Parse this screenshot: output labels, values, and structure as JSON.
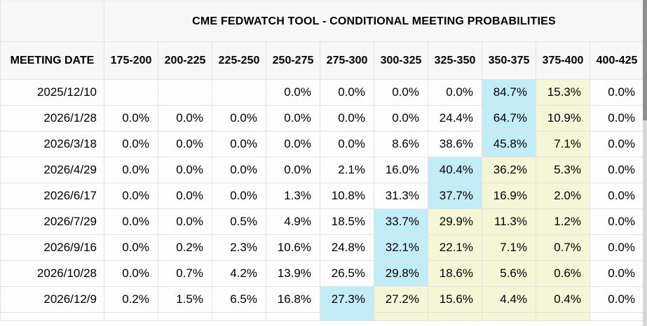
{
  "table": {
    "title": "CME FEDWATCH TOOL - CONDITIONAL MEETING PROBABILITIES",
    "columns": [
      "MEETING DATE",
      "175-200",
      "200-225",
      "225-250",
      "250-275",
      "275-300",
      "300-325",
      "325-350",
      "350-375",
      "375-400",
      "400-425"
    ],
    "rows": [
      {
        "date": "2025/12/10",
        "values": [
          "",
          "",
          "",
          "0.0%",
          "0.0%",
          "0.0%",
          "0.0%",
          "84.7%",
          "15.3%",
          "0.0%"
        ],
        "highlight": [
          null,
          null,
          null,
          null,
          null,
          null,
          null,
          "cyan",
          "yellow",
          null
        ],
        "partial": false
      },
      {
        "date": "2026/1/28",
        "values": [
          "0.0%",
          "0.0%",
          "0.0%",
          "0.0%",
          "0.0%",
          "0.0%",
          "24.4%",
          "64.7%",
          "10.9%",
          "0.0%"
        ],
        "highlight": [
          null,
          null,
          null,
          null,
          null,
          null,
          null,
          "cyan",
          "yellow",
          null
        ],
        "partial": false
      },
      {
        "date": "2026/3/18",
        "values": [
          "0.0%",
          "0.0%",
          "0.0%",
          "0.0%",
          "0.0%",
          "8.6%",
          "38.6%",
          "45.8%",
          "7.1%",
          "0.0%"
        ],
        "highlight": [
          null,
          null,
          null,
          null,
          null,
          null,
          null,
          "cyan",
          "yellow",
          null
        ],
        "partial": false
      },
      {
        "date": "2026/4/29",
        "values": [
          "0.0%",
          "0.0%",
          "0.0%",
          "0.0%",
          "2.1%",
          "16.0%",
          "40.4%",
          "36.2%",
          "5.3%",
          "0.0%"
        ],
        "highlight": [
          null,
          null,
          null,
          null,
          null,
          null,
          "cyan",
          "yellow",
          "yellow",
          null
        ],
        "partial": false
      },
      {
        "date": "2026/6/17",
        "values": [
          "0.0%",
          "0.0%",
          "0.0%",
          "1.3%",
          "10.8%",
          "31.3%",
          "37.7%",
          "16.9%",
          "2.0%",
          "0.0%"
        ],
        "highlight": [
          null,
          null,
          null,
          null,
          null,
          null,
          "cyan",
          "yellow",
          "yellow",
          null
        ],
        "partial": false
      },
      {
        "date": "2026/7/29",
        "values": [
          "0.0%",
          "0.0%",
          "0.5%",
          "4.9%",
          "18.5%",
          "33.7%",
          "29.9%",
          "11.3%",
          "1.2%",
          "0.0%"
        ],
        "highlight": [
          null,
          null,
          null,
          null,
          null,
          "cyan",
          "yellow",
          "yellow",
          "yellow",
          null
        ],
        "partial": false
      },
      {
        "date": "2026/9/16",
        "values": [
          "0.0%",
          "0.2%",
          "2.3%",
          "10.6%",
          "24.8%",
          "32.1%",
          "22.1%",
          "7.1%",
          "0.7%",
          "0.0%"
        ],
        "highlight": [
          null,
          null,
          null,
          null,
          null,
          "cyan",
          "yellow",
          "yellow",
          "yellow",
          null
        ],
        "partial": false
      },
      {
        "date": "2026/10/28",
        "values": [
          "0.0%",
          "0.7%",
          "4.2%",
          "13.9%",
          "26.5%",
          "29.8%",
          "18.6%",
          "5.6%",
          "0.6%",
          "0.0%"
        ],
        "highlight": [
          null,
          null,
          null,
          null,
          null,
          "cyan",
          "yellow",
          "yellow",
          "yellow",
          null
        ],
        "partial": false
      },
      {
        "date": "2026/12/9",
        "values": [
          "0.2%",
          "1.5%",
          "6.5%",
          "16.8%",
          "27.3%",
          "27.2%",
          "15.6%",
          "4.4%",
          "0.4%",
          "0.0%"
        ],
        "highlight": [
          null,
          null,
          null,
          null,
          "cyan",
          "yellow",
          "yellow",
          "yellow",
          "yellow",
          null
        ],
        "partial": false
      },
      {
        "date": "",
        "values": [
          "",
          "",
          "",
          "",
          "",
          "",
          "",
          "",
          "",
          ""
        ],
        "highlight": [
          null,
          null,
          null,
          null,
          "cyan",
          "yellow",
          "yellow",
          "yellow",
          "yellow",
          null
        ],
        "partial": true
      }
    ]
  },
  "colors": {
    "highlight_cyan": "#c2edf6",
    "highlight_yellow": "#f5f5d8",
    "header_bg": "#f7f7f7",
    "row_bg": "#fdfdfd",
    "border": "#e3e3e3",
    "scrollbar_track": "#d7d7d7",
    "scrollbar_thumb": "#8f8f8f"
  }
}
